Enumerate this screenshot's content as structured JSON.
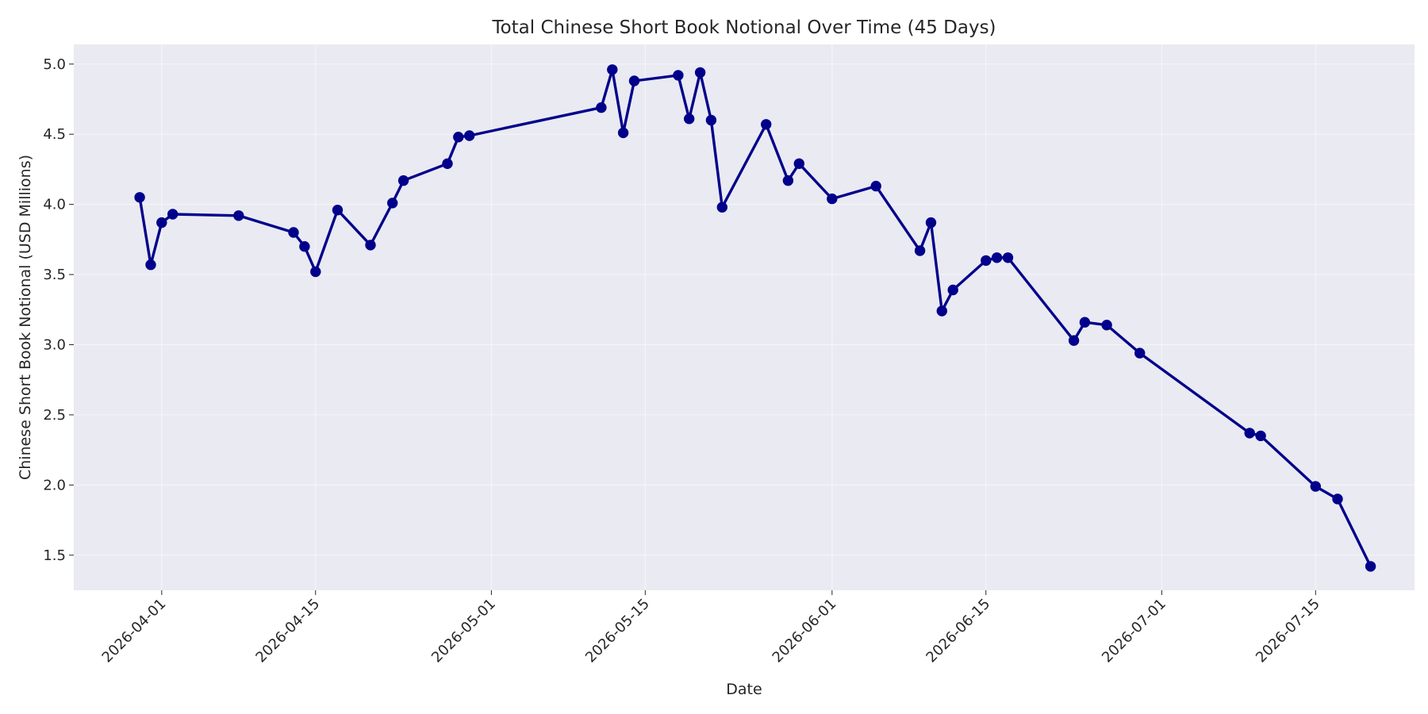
{
  "chart_data": {
    "type": "line",
    "title": "Total Chinese Short Book Notional Over Time (45 Days)",
    "xlabel": "Date",
    "ylabel": "Chinese Short Book Notional (USD Millions)",
    "x_tick_labels": [
      "2026-04-01",
      "2026-04-15",
      "2026-05-01",
      "2026-05-15",
      "2026-06-01",
      "2026-06-15",
      "2026-07-01",
      "2026-07-15"
    ],
    "y_tick_labels": [
      "1.5",
      "2.0",
      "2.5",
      "3.0",
      "3.5",
      "4.0",
      "4.5",
      "5.0"
    ],
    "xlim": [
      "2026-03-24",
      "2026-07-24"
    ],
    "ylim": [
      1.25,
      5.14
    ],
    "grid": true,
    "legend": "none",
    "colors": {
      "series": "#00008b",
      "plot_background": "#eaeaf2",
      "grid": "#ffffff"
    },
    "series": [
      {
        "x": [
          "2026-03-30",
          "2026-03-31",
          "2026-04-01",
          "2026-04-02",
          "2026-04-08",
          "2026-04-13",
          "2026-04-14",
          "2026-04-15",
          "2026-04-17",
          "2026-04-20",
          "2026-04-22",
          "2026-04-23",
          "2026-04-27",
          "2026-04-28",
          "2026-04-29",
          "2026-05-11",
          "2026-05-12",
          "2026-05-13",
          "2026-05-14",
          "2026-05-18",
          "2026-05-19",
          "2026-05-20",
          "2026-05-21",
          "2026-05-22",
          "2026-05-26",
          "2026-05-28",
          "2026-05-29",
          "2026-06-01",
          "2026-06-05",
          "2026-06-09",
          "2026-06-10",
          "2026-06-11",
          "2026-06-12",
          "2026-06-15",
          "2026-06-16",
          "2026-06-17",
          "2026-06-23",
          "2026-06-24",
          "2026-06-26",
          "2026-06-29",
          "2026-07-09",
          "2026-07-10",
          "2026-07-15",
          "2026-07-17",
          "2026-07-20"
        ],
        "values": [
          4.05,
          3.57,
          3.87,
          3.93,
          3.92,
          3.8,
          3.7,
          3.52,
          3.96,
          3.71,
          4.01,
          4.17,
          4.29,
          4.48,
          4.49,
          4.69,
          4.96,
          4.51,
          4.88,
          4.92,
          4.61,
          4.94,
          4.6,
          3.98,
          4.57,
          4.17,
          4.29,
          4.04,
          4.13,
          3.67,
          3.87,
          3.24,
          3.39,
          3.6,
          3.62,
          3.62,
          3.03,
          3.16,
          3.14,
          2.94,
          2.37,
          2.35,
          1.99,
          1.9,
          1.42
        ]
      }
    ]
  }
}
